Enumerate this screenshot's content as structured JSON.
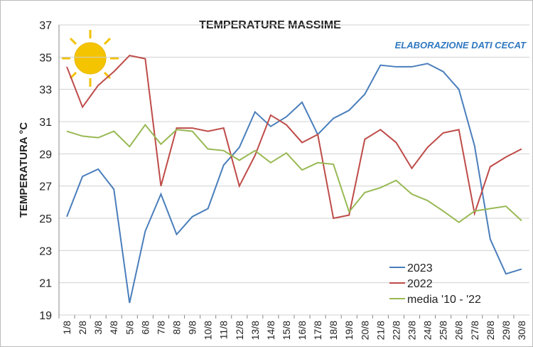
{
  "chart_data": {
    "type": "line",
    "title": "TEMPERATURE  MASSIME",
    "annotation": "ELABORAZIONE DATI CECAT",
    "y_label": "TEMPERATURA °C",
    "categories": [
      "1/8",
      "2/8",
      "3/8",
      "4/8",
      "5/8",
      "6/8",
      "7/8",
      "8/8",
      "9/8",
      "10/8",
      "11/8",
      "12/8",
      "13/8",
      "14/8",
      "15/8",
      "16/8",
      "17/8",
      "18/8",
      "19/8",
      "20/8",
      "21/8",
      "22/8",
      "23/8",
      "24/8",
      "25/8",
      "26/8",
      "27/8",
      "28/8",
      "29/8",
      "30/8"
    ],
    "series": [
      {
        "name": "2023",
        "color": "#4a7ebb",
        "values": [
          25.1,
          27.6,
          28.05,
          26.8,
          19.75,
          24.2,
          26.5,
          24.0,
          25.1,
          25.6,
          28.3,
          29.4,
          31.6,
          30.7,
          31.3,
          32.2,
          30.2,
          31.2,
          31.7,
          32.7,
          34.5,
          34.4,
          34.4,
          34.6,
          34.1,
          33.0,
          29.5,
          23.7,
          21.55,
          21.85
        ]
      },
      {
        "name": "2022",
        "color": "#be4b48",
        "values": [
          34.4,
          31.9,
          33.25,
          34.1,
          35.1,
          34.9,
          27.0,
          30.6,
          30.6,
          30.4,
          30.6,
          27.0,
          28.9,
          31.4,
          30.8,
          29.7,
          30.2,
          25.0,
          25.2,
          29.9,
          30.5,
          29.7,
          28.1,
          29.4,
          30.3,
          30.5,
          25.3,
          28.2,
          28.8,
          29.3
        ]
      },
      {
        "name": "media '10 - '22",
        "color": "#98b954",
        "values": [
          30.4,
          30.1,
          30.0,
          30.4,
          29.45,
          30.8,
          29.6,
          30.5,
          30.4,
          29.3,
          29.2,
          28.6,
          29.2,
          28.45,
          29.05,
          28.0,
          28.45,
          28.35,
          25.4,
          26.6,
          26.9,
          27.35,
          26.5,
          26.1,
          25.45,
          24.75,
          25.45,
          25.6,
          25.75,
          24.85
        ]
      }
    ],
    "ylim": [
      19,
      37
    ],
    "yticks": [
      19,
      21,
      23,
      25,
      27,
      29,
      31,
      33,
      35,
      37
    ],
    "grid": true,
    "legend": "lower right"
  }
}
